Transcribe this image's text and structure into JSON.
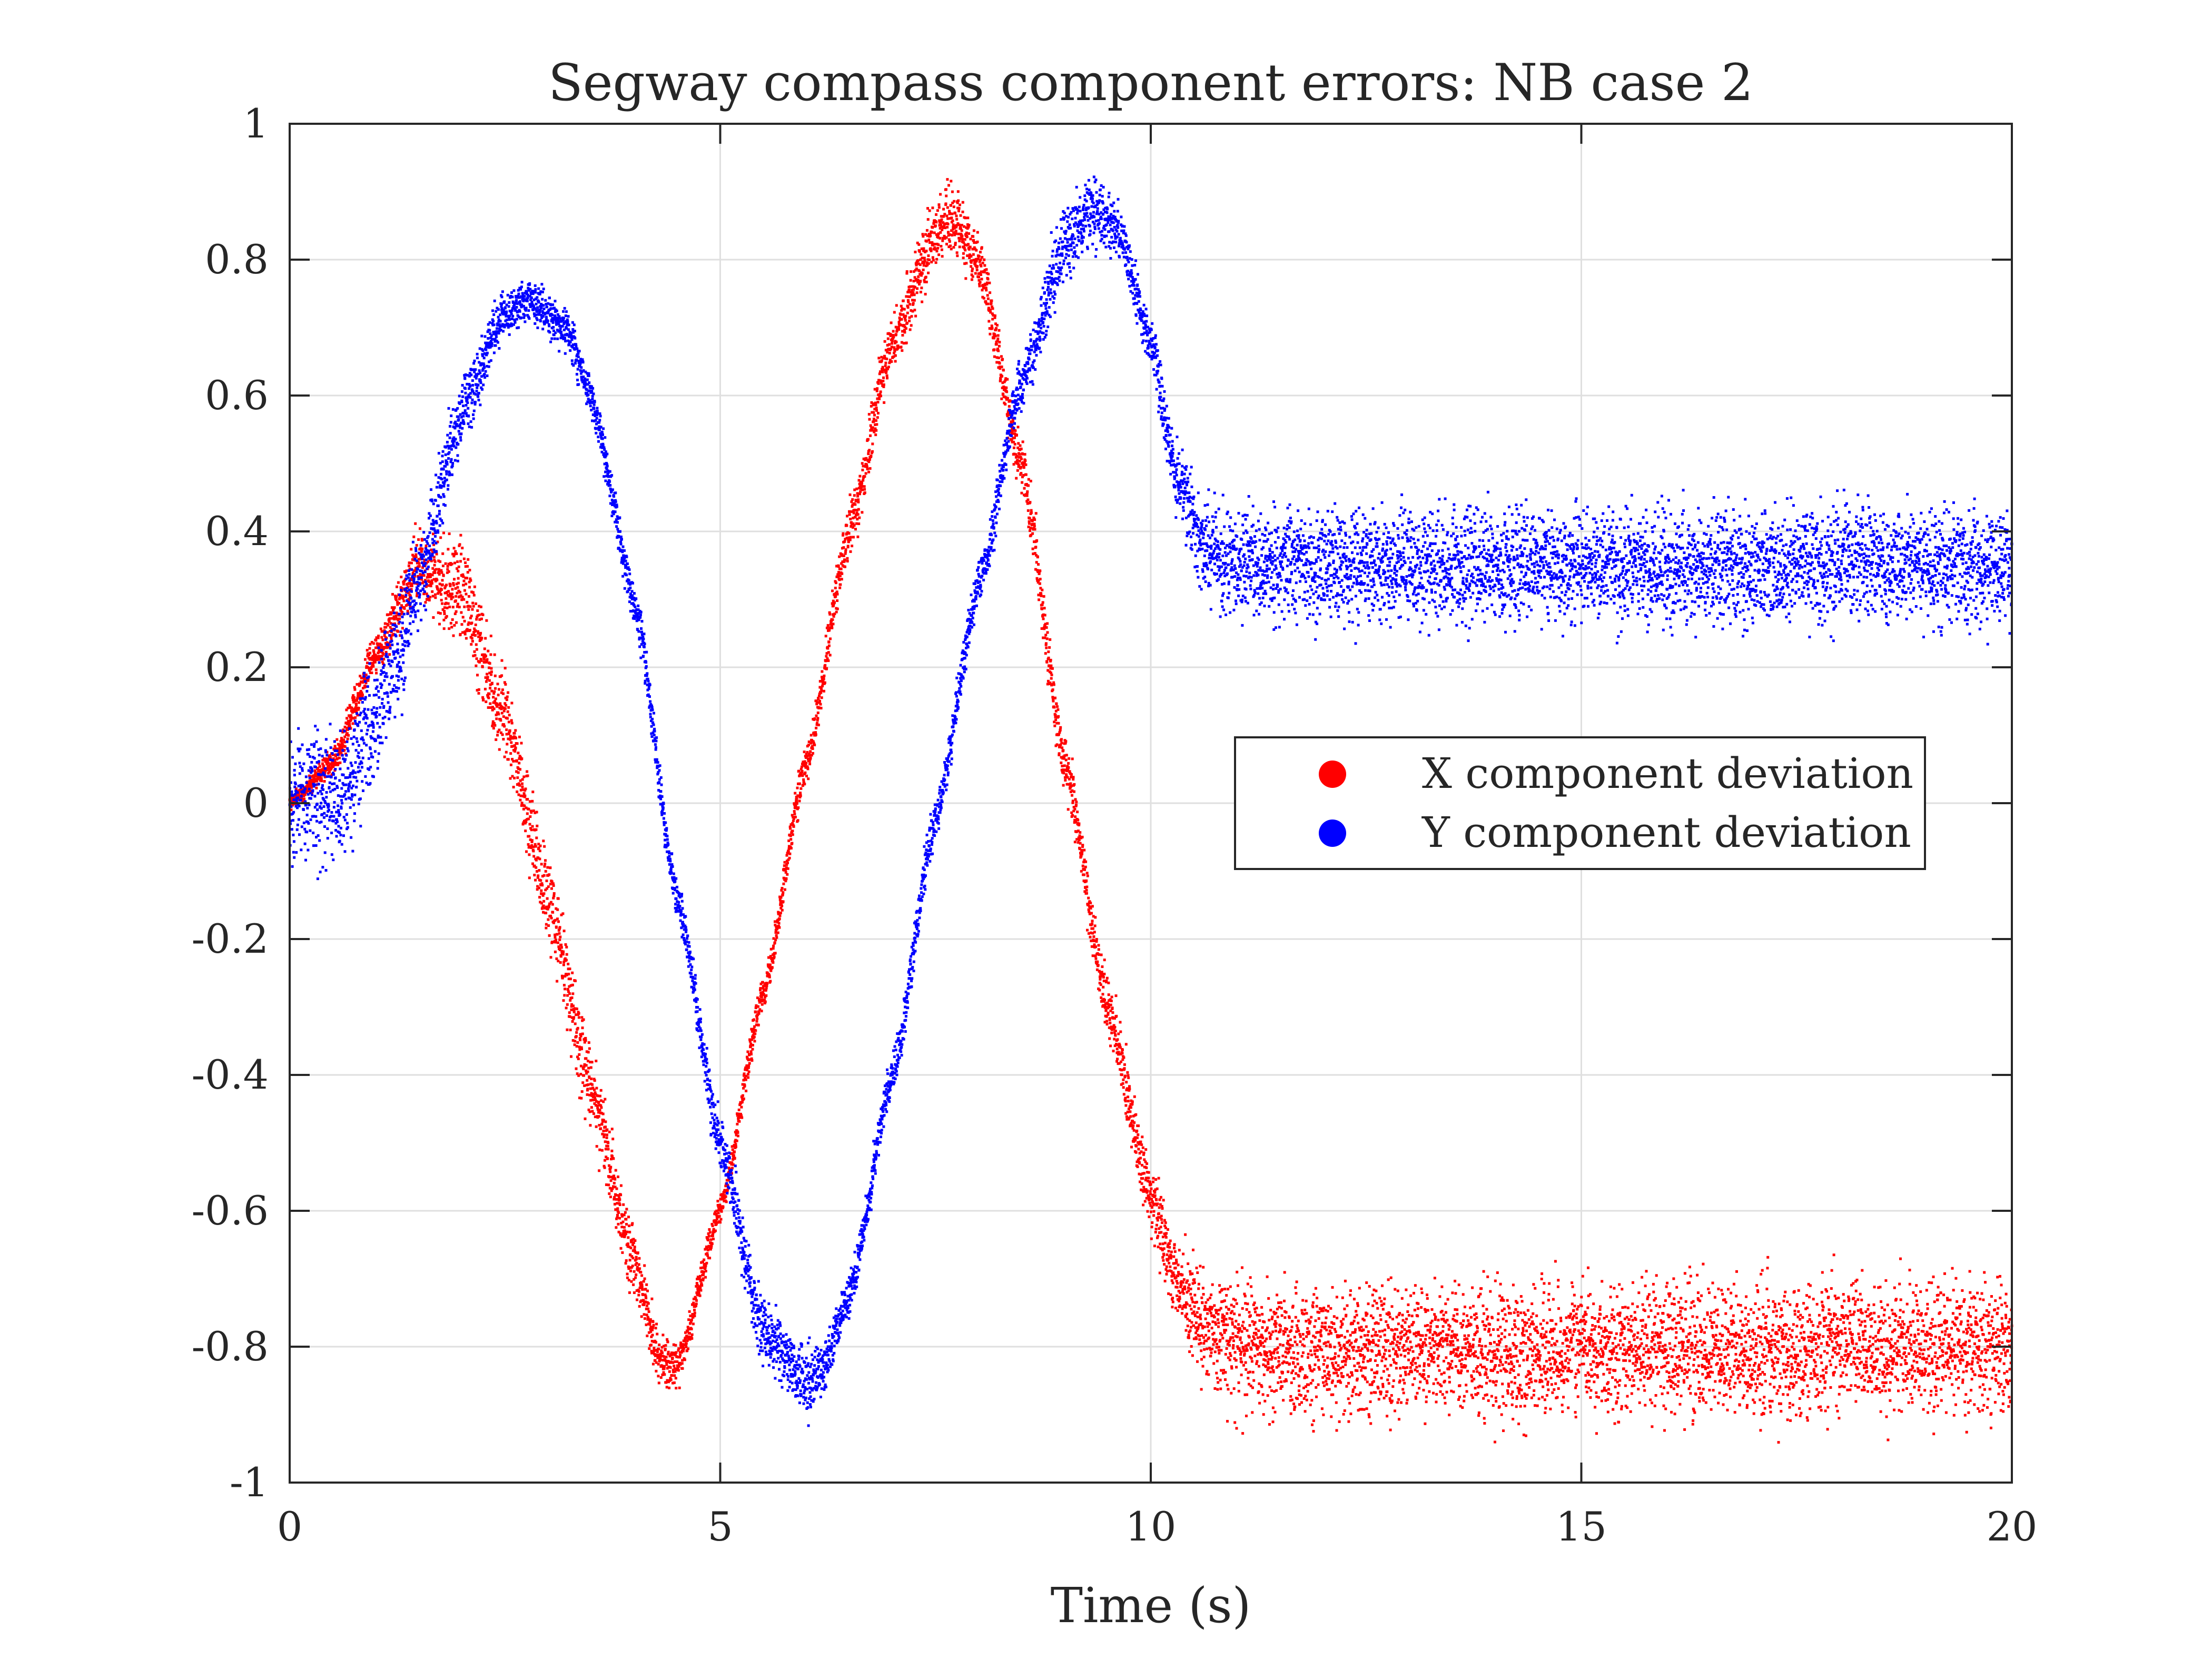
{
  "chart_data": {
    "type": "scatter",
    "title": "Segway compass component errors: NB case 2",
    "xlabel": "Time (s)",
    "ylabel": "",
    "xlim": [
      0,
      20
    ],
    "ylim": [
      -1,
      1
    ],
    "xticks": [
      0,
      5,
      10,
      15,
      20
    ],
    "yticks": [
      -1,
      -0.8,
      -0.6,
      -0.4,
      -0.2,
      0,
      0.2,
      0.4,
      0.6,
      0.8,
      1
    ],
    "xtick_labels": [
      "0",
      "5",
      "10",
      "15",
      "20"
    ],
    "ytick_labels": [
      "-1",
      "-0.8",
      "-0.6",
      "-0.4",
      "-0.2",
      "0",
      "0.2",
      "0.4",
      "0.6",
      "0.8",
      "1"
    ],
    "grid": true,
    "legend_position": "center-right",
    "series": [
      {
        "name": "X component deviation",
        "color": "#ff0000",
        "t": [
          0,
          0.5,
          1,
          1.5,
          2,
          2.5,
          3,
          3.5,
          4,
          4.3,
          4.5,
          5,
          5.5,
          6,
          6.5,
          7,
          7.5,
          7.7,
          8,
          8.5,
          9,
          9.5,
          10,
          10.3,
          10.6,
          11,
          12,
          13,
          14,
          15,
          16,
          17,
          18,
          19,
          20
        ],
        "y": [
          0,
          0.06,
          0.22,
          0.35,
          0.31,
          0.12,
          -0.14,
          -0.42,
          -0.68,
          -0.82,
          -0.83,
          -0.6,
          -0.28,
          0.06,
          0.4,
          0.68,
          0.84,
          0.86,
          0.8,
          0.5,
          0.06,
          -0.3,
          -0.58,
          -0.7,
          -0.77,
          -0.8,
          -0.81,
          -0.8,
          -0.81,
          -0.8,
          -0.8,
          -0.81,
          -0.8,
          -0.8,
          -0.8
        ],
        "spread": [
          0.005,
          0.01,
          0.015,
          0.025,
          0.035,
          0.035,
          0.03,
          0.03,
          0.025,
          0.02,
          0.015,
          0.01,
          0.012,
          0.015,
          0.02,
          0.02,
          0.025,
          0.025,
          0.02,
          0.02,
          0.02,
          0.02,
          0.025,
          0.03,
          0.04,
          0.045,
          0.045,
          0.045,
          0.045,
          0.045,
          0.045,
          0.045,
          0.045,
          0.045,
          0.045
        ]
      },
      {
        "name": "Y component deviation",
        "color": "#0000ff",
        "t": [
          0,
          0.3,
          0.6,
          0.9,
          1.2,
          1.5,
          2,
          2.5,
          2.8,
          3.2,
          3.5,
          4,
          4.5,
          5,
          5.5,
          6,
          6.2,
          6.5,
          7,
          7.5,
          8,
          8.5,
          9,
          9.3,
          9.6,
          10,
          10.3,
          10.6,
          11,
          12,
          13,
          14,
          15,
          16,
          17,
          18,
          19,
          20
        ],
        "y": [
          0,
          0.02,
          0.0,
          0.1,
          0.2,
          0.33,
          0.58,
          0.72,
          0.74,
          0.7,
          0.6,
          0.3,
          -0.14,
          -0.5,
          -0.78,
          -0.85,
          -0.83,
          -0.72,
          -0.4,
          -0.02,
          0.32,
          0.62,
          0.82,
          0.87,
          0.85,
          0.68,
          0.48,
          0.38,
          0.35,
          0.35,
          0.35,
          0.35,
          0.35,
          0.35,
          0.35,
          0.35,
          0.35,
          0.35
        ],
        "spread": [
          0.045,
          0.045,
          0.045,
          0.045,
          0.04,
          0.035,
          0.025,
          0.015,
          0.015,
          0.015,
          0.015,
          0.015,
          0.015,
          0.02,
          0.025,
          0.025,
          0.02,
          0.015,
          0.015,
          0.015,
          0.015,
          0.02,
          0.025,
          0.025,
          0.02,
          0.02,
          0.025,
          0.035,
          0.04,
          0.04,
          0.04,
          0.04,
          0.04,
          0.04,
          0.04,
          0.04,
          0.04,
          0.04
        ]
      }
    ]
  }
}
